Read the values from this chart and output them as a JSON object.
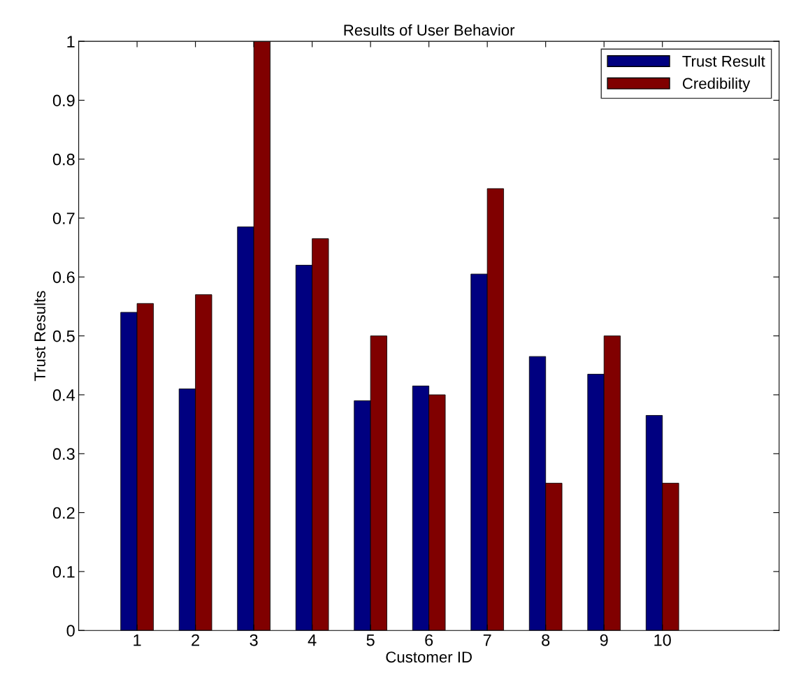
{
  "chart_data": {
    "type": "bar",
    "title": "Results of User Behavior",
    "xlabel": "Customer ID",
    "ylabel": "Trust Results",
    "x": [
      1,
      2,
      3,
      4,
      5,
      6,
      7,
      8,
      9,
      10
    ],
    "series": [
      {
        "name": "Trust Result",
        "color": "#000080",
        "values": [
          0.54,
          0.41,
          0.685,
          0.62,
          0.39,
          0.415,
          0.605,
          0.465,
          0.435,
          0.365
        ]
      },
      {
        "name": "Credibility",
        "color": "#800000",
        "values": [
          0.555,
          0.57,
          1.0,
          0.665,
          0.5,
          0.4,
          0.75,
          0.25,
          0.5,
          0.25
        ]
      }
    ],
    "xlim": [
      0,
      12
    ],
    "xticks": [
      1,
      2,
      3,
      4,
      5,
      6,
      7,
      8,
      9,
      10
    ],
    "ylim": [
      0,
      1
    ],
    "yticks": [
      0,
      0.1,
      0.2,
      0.3,
      0.4,
      0.5,
      0.6,
      0.7,
      0.8,
      0.9,
      1
    ],
    "grid": false,
    "legend": "top right"
  }
}
